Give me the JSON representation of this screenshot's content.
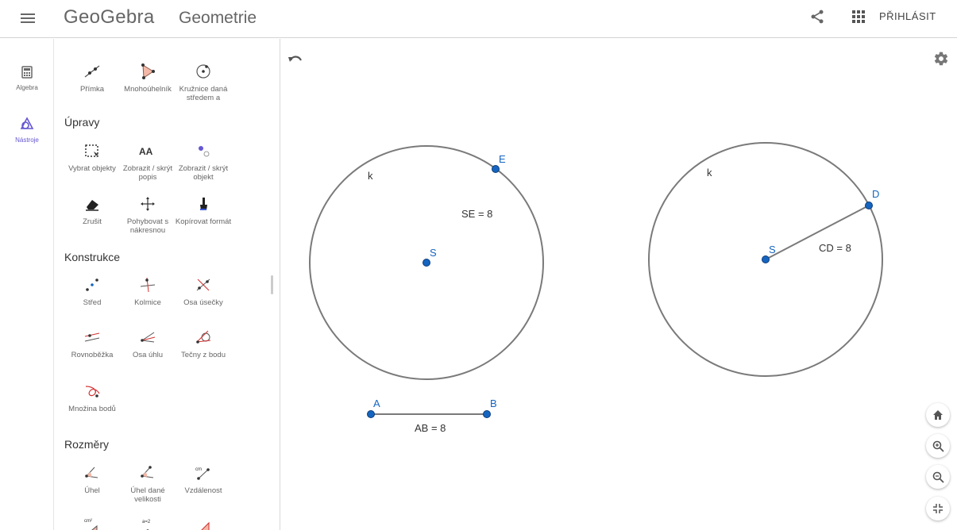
{
  "header": {
    "logo": "GeoGebra",
    "app_title": "Geometrie",
    "login": "PŘIHLÁSIT"
  },
  "rail": {
    "algebra": "Algebra",
    "tools": "Nástroje"
  },
  "tools_panel": {
    "row0": [
      "Přímka",
      "Mnohoúhelník",
      "Kružnice daná středem a"
    ],
    "sections": {
      "upravy": "Úpravy",
      "konstrukce": "Konstrukce",
      "rozmery": "Rozměry"
    },
    "upravy_tools": [
      [
        "Vybrat objekty",
        "Zobrazit / skrýt popis",
        "Zobrazit / skrýt objekt"
      ],
      [
        "Zrušit",
        "Pohybovat s nákresnou",
        "Kopírovat formát"
      ]
    ],
    "konstrukce_tools": [
      [
        "Střed",
        "Kolmice",
        "Osa úsečky"
      ],
      [
        "Rovnoběžka",
        "Osa úhlu",
        "Tečny z bodu"
      ],
      [
        "Množina bodů"
      ]
    ],
    "rozmery_tools": [
      [
        "Úhel",
        "Úhel dané velikosti",
        "Vzdálenost"
      ]
    ],
    "icon_texts": {
      "show_label": "AA",
      "distance": "cm",
      "area": "cm²",
      "slider": "a=2"
    }
  },
  "graphics": {
    "circle1": {
      "label": "k",
      "center": "S",
      "point": "E",
      "measure": "SE = 8"
    },
    "circle2": {
      "label": "k",
      "center": "S",
      "point": "D",
      "measure": "CD = 8"
    },
    "segment": {
      "a": "A",
      "b": "B",
      "measure": "AB = 8"
    },
    "colors": {
      "point": "#1565c0",
      "curve": "#7a7a7a",
      "label": "#1565c0"
    }
  }
}
